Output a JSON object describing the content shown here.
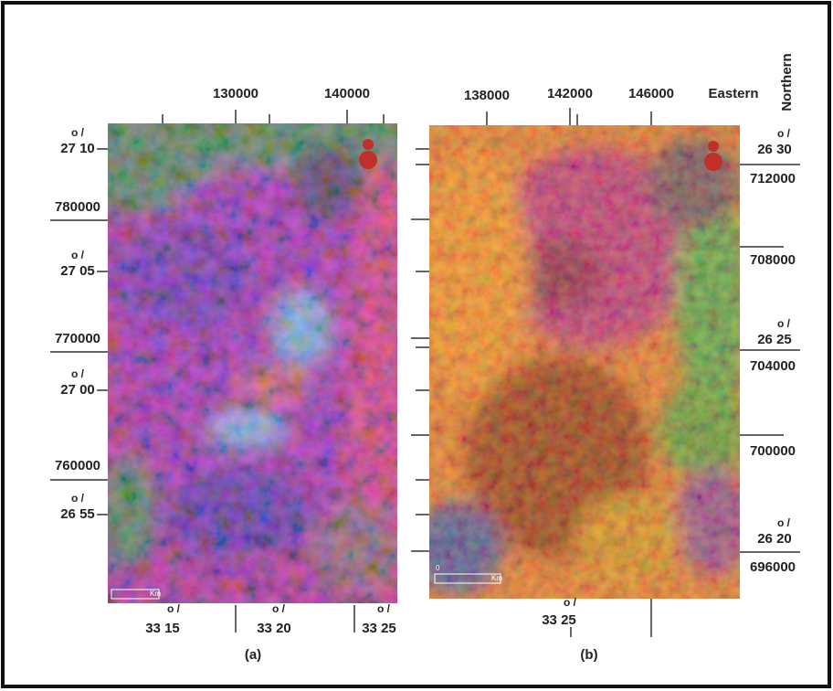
{
  "panels": [
    {
      "caption": "(a)",
      "eastings": [
        "130000",
        "140000"
      ],
      "northings": [
        "780000",
        "770000",
        "760000"
      ],
      "latitudes": [
        {
          "marks": "o /",
          "text": "27 10"
        },
        {
          "marks": "o /",
          "text": "27 05"
        },
        {
          "marks": "o /",
          "text": "27 00"
        },
        {
          "marks": "o /",
          "text": "26 55"
        }
      ],
      "longitudes": [
        {
          "marks": "o /",
          "text": "33 15"
        },
        {
          "marks": "o /",
          "text": "33 20"
        },
        {
          "marks": "o /",
          "text": "33 25"
        }
      ],
      "scale_unit": "Km"
    },
    {
      "caption": "(b)",
      "eastings": [
        "138000",
        "142000",
        "146000"
      ],
      "easting_title": "Eastern",
      "northing_title": "Northern",
      "northings": [
        "712000",
        "708000",
        "704000",
        "700000",
        "696000"
      ],
      "latitudes": [
        {
          "marks": "o /",
          "text": "26 30"
        },
        {
          "marks": "o /",
          "text": "26 25"
        },
        {
          "marks": "o /",
          "text": "26 20"
        }
      ],
      "longitudes": [
        {
          "marks": "o /",
          "text": "33 25"
        }
      ],
      "scale_zero": "0",
      "scale_unit": "Km"
    }
  ]
}
